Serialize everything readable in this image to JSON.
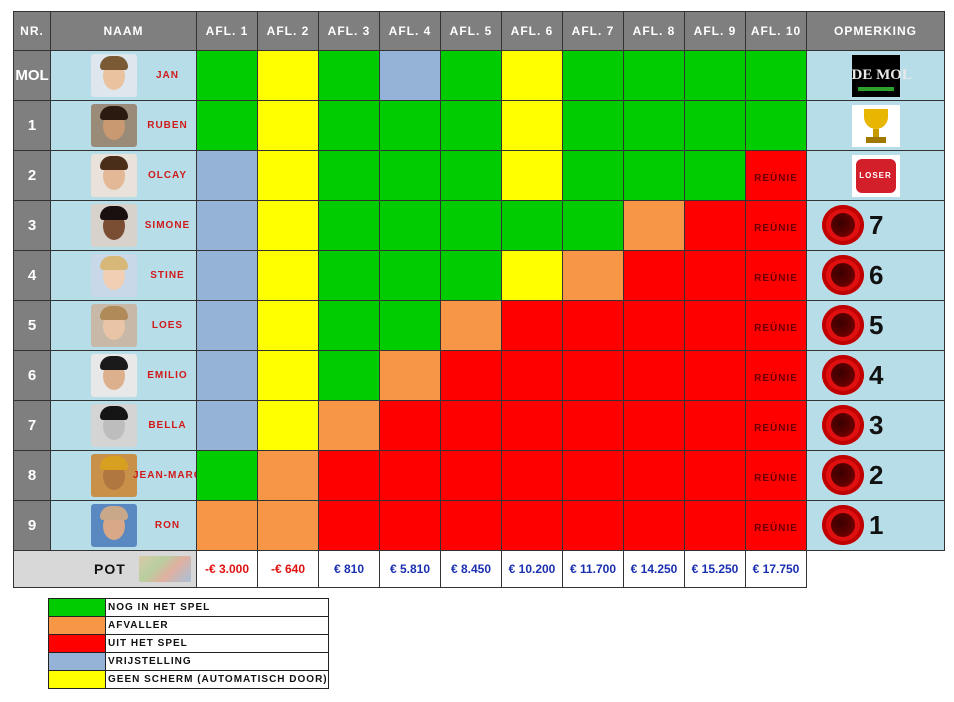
{
  "header": {
    "nr": "NR.",
    "naam": "NAAM",
    "episodes": [
      "AFL. 1",
      "AFL. 2",
      "AFL. 3",
      "AFL. 4",
      "AFL. 5",
      "AFL. 6",
      "AFL. 7",
      "AFL. 8",
      "AFL. 9",
      "AFL. 10"
    ],
    "opmerking": "OPMERKING"
  },
  "status_colors": {
    "in": "#00cc00",
    "af": "#f79646",
    "out": "#ff0000",
    "vr": "#95b3d7",
    "gs": "#ffff00"
  },
  "rows": [
    {
      "rank": "MOL",
      "name": "JAN",
      "status": [
        "in",
        "gs",
        "in",
        "vr",
        "in",
        "gs",
        "in",
        "in",
        "in",
        "in"
      ],
      "remark_type": "logo",
      "remark_text": "DE MOL",
      "avatar": {
        "skin": "#e9c2a0",
        "hair": "#7a5a35",
        "bg": "#dfe7ee"
      }
    },
    {
      "rank": "1",
      "name": "RUBEN",
      "status": [
        "in",
        "gs",
        "in",
        "in",
        "in",
        "gs",
        "in",
        "in",
        "in",
        "in"
      ],
      "remark_type": "trophy",
      "avatar": {
        "skin": "#c99a72",
        "hair": "#2a1a10",
        "bg": "#9a8a78"
      }
    },
    {
      "rank": "2",
      "name": "OLCAY",
      "status": [
        "vr",
        "gs",
        "in",
        "in",
        "in",
        "gs",
        "in",
        "in",
        "in",
        "out"
      ],
      "remark_type": "pillow",
      "remark_text": "LOSER",
      "avatar": {
        "skin": "#e2b896",
        "hair": "#4a2e1a",
        "bg": "#e8e2da"
      }
    },
    {
      "rank": "3",
      "name": "SIMONE",
      "status": [
        "vr",
        "gs",
        "in",
        "in",
        "in",
        "in",
        "in",
        "af",
        "out",
        "out"
      ],
      "remark_type": "place",
      "place": "7",
      "avatar": {
        "skin": "#7a4e32",
        "hair": "#1a1010",
        "bg": "#d8d2cc"
      }
    },
    {
      "rank": "4",
      "name": "STINE",
      "status": [
        "vr",
        "gs",
        "in",
        "in",
        "in",
        "gs",
        "af",
        "out",
        "out",
        "out"
      ],
      "remark_type": "place",
      "place": "6",
      "avatar": {
        "skin": "#f0cfb4",
        "hair": "#d8b878",
        "bg": "#c8d8e8"
      }
    },
    {
      "rank": "5",
      "name": "LOES",
      "status": [
        "vr",
        "gs",
        "in",
        "in",
        "af",
        "out",
        "out",
        "out",
        "out",
        "out"
      ],
      "remark_type": "place",
      "place": "5",
      "avatar": {
        "skin": "#eac4a6",
        "hair": "#b08a58",
        "bg": "#c8b8a8"
      }
    },
    {
      "rank": "6",
      "name": "EMILIO",
      "status": [
        "vr",
        "gs",
        "in",
        "af",
        "out",
        "out",
        "out",
        "out",
        "out",
        "out"
      ],
      "remark_type": "place",
      "place": "4",
      "avatar": {
        "skin": "#dcb08c",
        "hair": "#1a1a1a",
        "bg": "#e8e8e8"
      }
    },
    {
      "rank": "7",
      "name": "BELLA",
      "status": [
        "vr",
        "gs",
        "af",
        "out",
        "out",
        "out",
        "out",
        "out",
        "out",
        "out"
      ],
      "remark_type": "place",
      "place": "3",
      "avatar": {
        "skin": "#bdbdbd",
        "hair": "#151515",
        "bg": "#d4d4d4"
      }
    },
    {
      "rank": "8",
      "name": "JEAN-MARC",
      "status": [
        "in",
        "af",
        "out",
        "out",
        "out",
        "out",
        "out",
        "out",
        "out",
        "out"
      ],
      "remark_type": "place",
      "place": "2",
      "avatar": {
        "skin": "#b07840",
        "hair": "#d8a020",
        "bg": "#c89048"
      }
    },
    {
      "rank": "9",
      "name": "RON",
      "status": [
        "af",
        "af",
        "out",
        "out",
        "out",
        "out",
        "out",
        "out",
        "out",
        "out"
      ],
      "remark_type": "place",
      "place": "1",
      "avatar": {
        "skin": "#d8a888",
        "hair": "#c8a888",
        "bg": "#5a88c0"
      }
    }
  ],
  "reunie_label": "REÜNIE",
  "pot": {
    "label": "POT",
    "values": [
      {
        "text": "-€ 3.000",
        "sign": "neg"
      },
      {
        "text": "-€ 640",
        "sign": "neg"
      },
      {
        "text": "€ 810",
        "sign": "pos"
      },
      {
        "text": "€ 5.810",
        "sign": "pos"
      },
      {
        "text": "€ 8.450",
        "sign": "pos"
      },
      {
        "text": "€ 10.200",
        "sign": "pos"
      },
      {
        "text": "€ 11.700",
        "sign": "pos"
      },
      {
        "text": "€ 14.250",
        "sign": "pos"
      },
      {
        "text": "€ 15.250",
        "sign": "pos"
      },
      {
        "text": "€ 17.750",
        "sign": "pos"
      }
    ]
  },
  "legend": [
    {
      "status": "in",
      "label": "NOG IN HET SPEL"
    },
    {
      "status": "af",
      "label": "AFVALLER"
    },
    {
      "status": "out",
      "label": "UIT HET SPEL"
    },
    {
      "status": "vr",
      "label": "VRIJSTELLING"
    },
    {
      "status": "gs",
      "label": "GEEN SCHERM (AUTOMATISCH DOOR)"
    }
  ]
}
